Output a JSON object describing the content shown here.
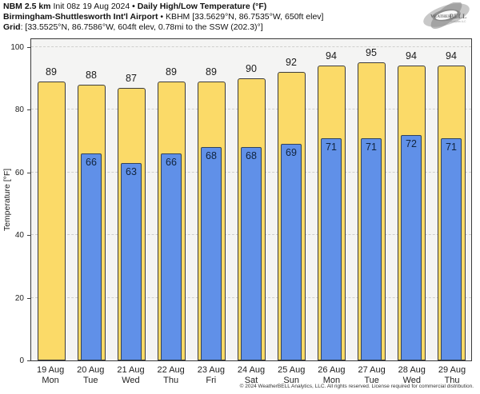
{
  "header": {
    "line1": [
      {
        "text": "NBM 2.5 km",
        "bold": true
      },
      {
        "text": " Init 08z 19 Aug 2024 ",
        "bold": false
      },
      {
        "text": "• Daily High/Low Temperature (°F)",
        "bold": true
      }
    ],
    "line2": [
      {
        "text": "Birmingham-Shuttlesworth Int'l Airport",
        "bold": true
      },
      {
        "text": " • KBHM [33.5629°N, 86.7535°W, 650ft elev]",
        "bold": false
      }
    ],
    "line3": [
      {
        "text": "Grid",
        "bold": true
      },
      {
        "text": ": [33.5525°N, 86.7586°W, 604ft elev, 0.78mi to the SSW (202.3)°]",
        "bold": false
      }
    ]
  },
  "logo": {
    "brand_left": "Weather",
    "brand_right": "BELL",
    "tagline": "Analytics LLC"
  },
  "footer": {
    "copyright": "© 2024 WeatherBELL Analytics, LLC. All rights reserved. License required for commercial distribution."
  },
  "chart_data": {
    "type": "bar",
    "title": "NBM 2.5 km Init 08z 19 Aug 2024 • Daily High/Low Temperature (°F)",
    "subtitle": "Birmingham-Shuttlesworth Int'l Airport • KBHM [33.5629°N, 86.7535°W, 650ft elev]",
    "categories": [
      "19 Aug",
      "20 Aug",
      "21 Aug",
      "22 Aug",
      "23 Aug",
      "24 Aug",
      "25 Aug",
      "26 Aug",
      "27 Aug",
      "28 Aug",
      "29 Aug"
    ],
    "weekdays": [
      "Mon",
      "Tue",
      "Wed",
      "Thu",
      "Fri",
      "Sat",
      "Sun",
      "Mon",
      "Tue",
      "Wed",
      "Thu"
    ],
    "series": [
      {
        "name": "Daily High",
        "color": "#fbda68",
        "values": [
          89,
          88,
          87,
          89,
          89,
          90,
          92,
          94,
          95,
          94,
          94
        ]
      },
      {
        "name": "Daily Low",
        "color": "#6090e8",
        "values": [
          null,
          66,
          63,
          66,
          68,
          68,
          69,
          71,
          71,
          72,
          71
        ]
      }
    ],
    "xlabel": "",
    "ylabel": "Temperature [°F]",
    "ylim": [
      0,
      102.5
    ],
    "yticks": [
      0,
      20,
      40,
      60,
      80,
      100
    ],
    "grid": "horizontal-dashed",
    "legend": "none",
    "plot_bg": "#f4f4f3",
    "bar_border_color": "#3c3c3c"
  }
}
